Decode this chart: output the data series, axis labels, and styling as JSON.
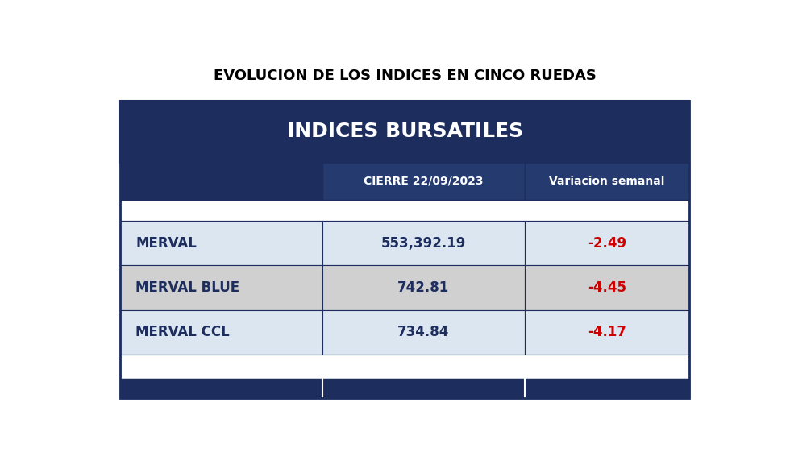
{
  "title": "EVOLUCION DE LOS INDICES EN CINCO RUEDAS",
  "table_header": "INDICES BURSATILES",
  "col_headers": [
    "",
    "CIERRE 22/09/2023",
    "Variacion semanal"
  ],
  "rows": [
    [
      "MERVAL",
      "553,392.19",
      "-2.49"
    ],
    [
      "MERVAL BLUE",
      "742.81",
      "-4.45"
    ],
    [
      "MERVAL CCL",
      "734.84",
      "-4.17"
    ]
  ],
  "color_dark_navy": "#1d2d5e",
  "color_white": "#ffffff",
  "color_red": "#cc0000",
  "color_dark_text": "#1d2d5e",
  "color_header_bg": "#1d2d5e",
  "color_subheader_bg": "#253a6e",
  "color_border": "#1d2d5e",
  "row_colors": [
    "#dce6f1",
    "#d0d0d0",
    "#dce6f1"
  ],
  "color_empty_row": "#e8eef7",
  "background_color": "#ffffff",
  "title_fontsize": 13,
  "header_fontsize": 18,
  "subheader_fontsize": 10,
  "data_fontsize": 12
}
